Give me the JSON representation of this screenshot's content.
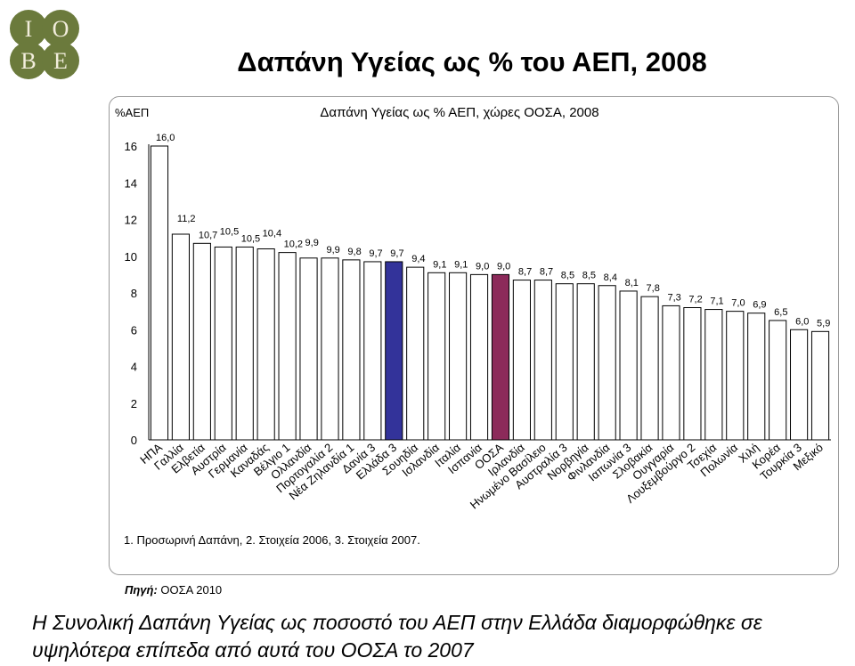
{
  "header": {
    "logo_text": "IOBE",
    "title": "Δαπάνη Υγείας ως % του ΑΕΠ, 2008"
  },
  "chart_data": {
    "type": "bar",
    "title": "Δαπάνη Υγείας ως % ΑΕΠ, χώρες ΟΟΣΑ, 2008",
    "ylabel": "%ΑΕΠ",
    "ylim": [
      0,
      16
    ],
    "yticks": [
      0,
      2,
      4,
      6,
      8,
      10,
      12,
      14,
      16
    ],
    "categories": [
      "ΗΠΑ",
      "Γαλλία",
      "Ελβετία",
      "Αυστρία",
      "Γερμανία",
      "Καναδάς",
      "Βέλγιο 1",
      "Ολλανδία",
      "Πορτογαλία 2",
      "Νέα Ζηλανδία 1",
      "Δανία 3",
      "Ελλάδα 3",
      "Σουηδία",
      "Ισλανδία",
      "Ιταλία",
      "Ισπανία",
      "ΟΟΣΑ",
      "Ιρλανδία",
      "Ηνωμένο Βασίλειο",
      "Αυστραλία 3",
      "Νορβηγία",
      "Φινλανδία",
      "Ιαπωνία 3",
      "Σλοβακία",
      "Ουγγαρία",
      "Λουξεμβούργο 2",
      "Τσεχία",
      "Πολωνία",
      "Χιλή",
      "Κορέα",
      "Τουρκία 3",
      "Μεξικό"
    ],
    "values": [
      16.0,
      11.2,
      10.7,
      10.5,
      10.5,
      10.4,
      10.2,
      9.9,
      9.9,
      9.8,
      9.7,
      9.7,
      9.4,
      9.1,
      9.1,
      9.0,
      9.0,
      8.7,
      8.7,
      8.5,
      8.5,
      8.4,
      8.1,
      7.8,
      7.3,
      7.2,
      7.1,
      7.0,
      6.9,
      6.5,
      6.0,
      5.9
    ],
    "value_labels": [
      "16,0",
      "11,2",
      "10,7",
      "10,5",
      "10,5",
      "10,4",
      "10,2",
      "9,9",
      "9,9",
      "9,8",
      "9,7",
      "9,7",
      "9,4",
      "9,1",
      "9,1",
      "9,0",
      "9,0",
      "8,7",
      "8,7",
      "8,5",
      "8,5",
      "8,4",
      "8,1",
      "7,8",
      "7,3",
      "7,2",
      "7,1",
      "7,0",
      "6,9",
      "6,5",
      "6,0",
      "5,9"
    ],
    "highlight": {
      "Ελλάδα 3": "#33339a",
      "ΟΟΣΑ": "#8c2a5a"
    },
    "colors": {
      "bar": "#ffffff",
      "bar_border": "#000000",
      "plot_bg": "#ffffff",
      "axis": "#000000"
    },
    "grid": false,
    "footnote": "1. Προσωρινή Δαπάνη, 2. Στοιχεία 2006, 3. Στοιχεία 2007."
  },
  "source": {
    "label": "Πηγή:",
    "text": "ΟΟΣΑ 2010"
  },
  "conclusion": {
    "line1": "Η Συνολική Δαπάνη Υγείας ως ποσοστό του ΑΕΠ στην Ελλάδα διαμορφώθηκε σε",
    "line2": "υψηλότερα επίπεδα από αυτά του ΟΟΣΑ το 2007"
  }
}
